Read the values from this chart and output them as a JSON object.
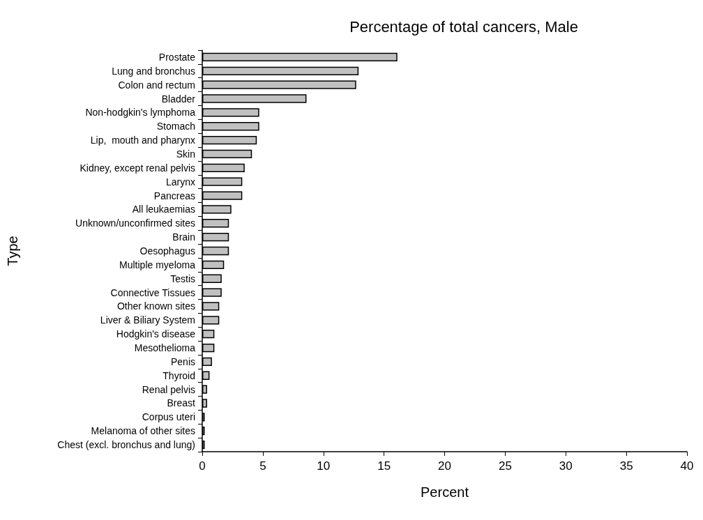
{
  "chart_data": {
    "type": "bar",
    "orientation": "horizontal",
    "title": "Percentage of total cancers, Male",
    "xlabel": "Percent",
    "ylabel": "Type",
    "categories": [
      "Prostate",
      "Lung and bronchus",
      "Colon and rectum",
      "Bladder",
      "Non-hodgkin's lymphoma",
      "Stomach",
      "Lip,  mouth and pharynx",
      "Skin",
      "Kidney, except renal pelvis",
      "Larynx",
      "Pancreas",
      "All leukaemias",
      "Unknown/unconfirmed sites",
      "Brain",
      "Oesophagus",
      "Multiple myeloma",
      "Testis",
      "Connective Tissues",
      "Other known sites",
      "Liver & Biliary System",
      "Hodgkin's disease",
      "Mesothelioma",
      "Penis",
      "Thyroid",
      "Renal pelvis",
      "Breast",
      "Corpus uteri",
      "Melanoma of other sites",
      "Chest (excl. bronchus and lung)"
    ],
    "values": [
      16.1,
      12.9,
      12.7,
      8.6,
      4.7,
      4.7,
      4.5,
      4.1,
      3.5,
      3.3,
      3.3,
      2.4,
      2.2,
      2.2,
      2.2,
      1.8,
      1.6,
      1.6,
      1.4,
      1.4,
      1.0,
      1.0,
      0.8,
      0.6,
      0.4,
      0.4,
      0.2,
      0.2,
      0.2
    ],
    "color": "#c0c0c0",
    "xlim": [
      0,
      40
    ],
    "xticks": [
      0,
      5,
      10,
      15,
      20,
      25,
      30,
      35,
      40
    ],
    "grid": false
  }
}
